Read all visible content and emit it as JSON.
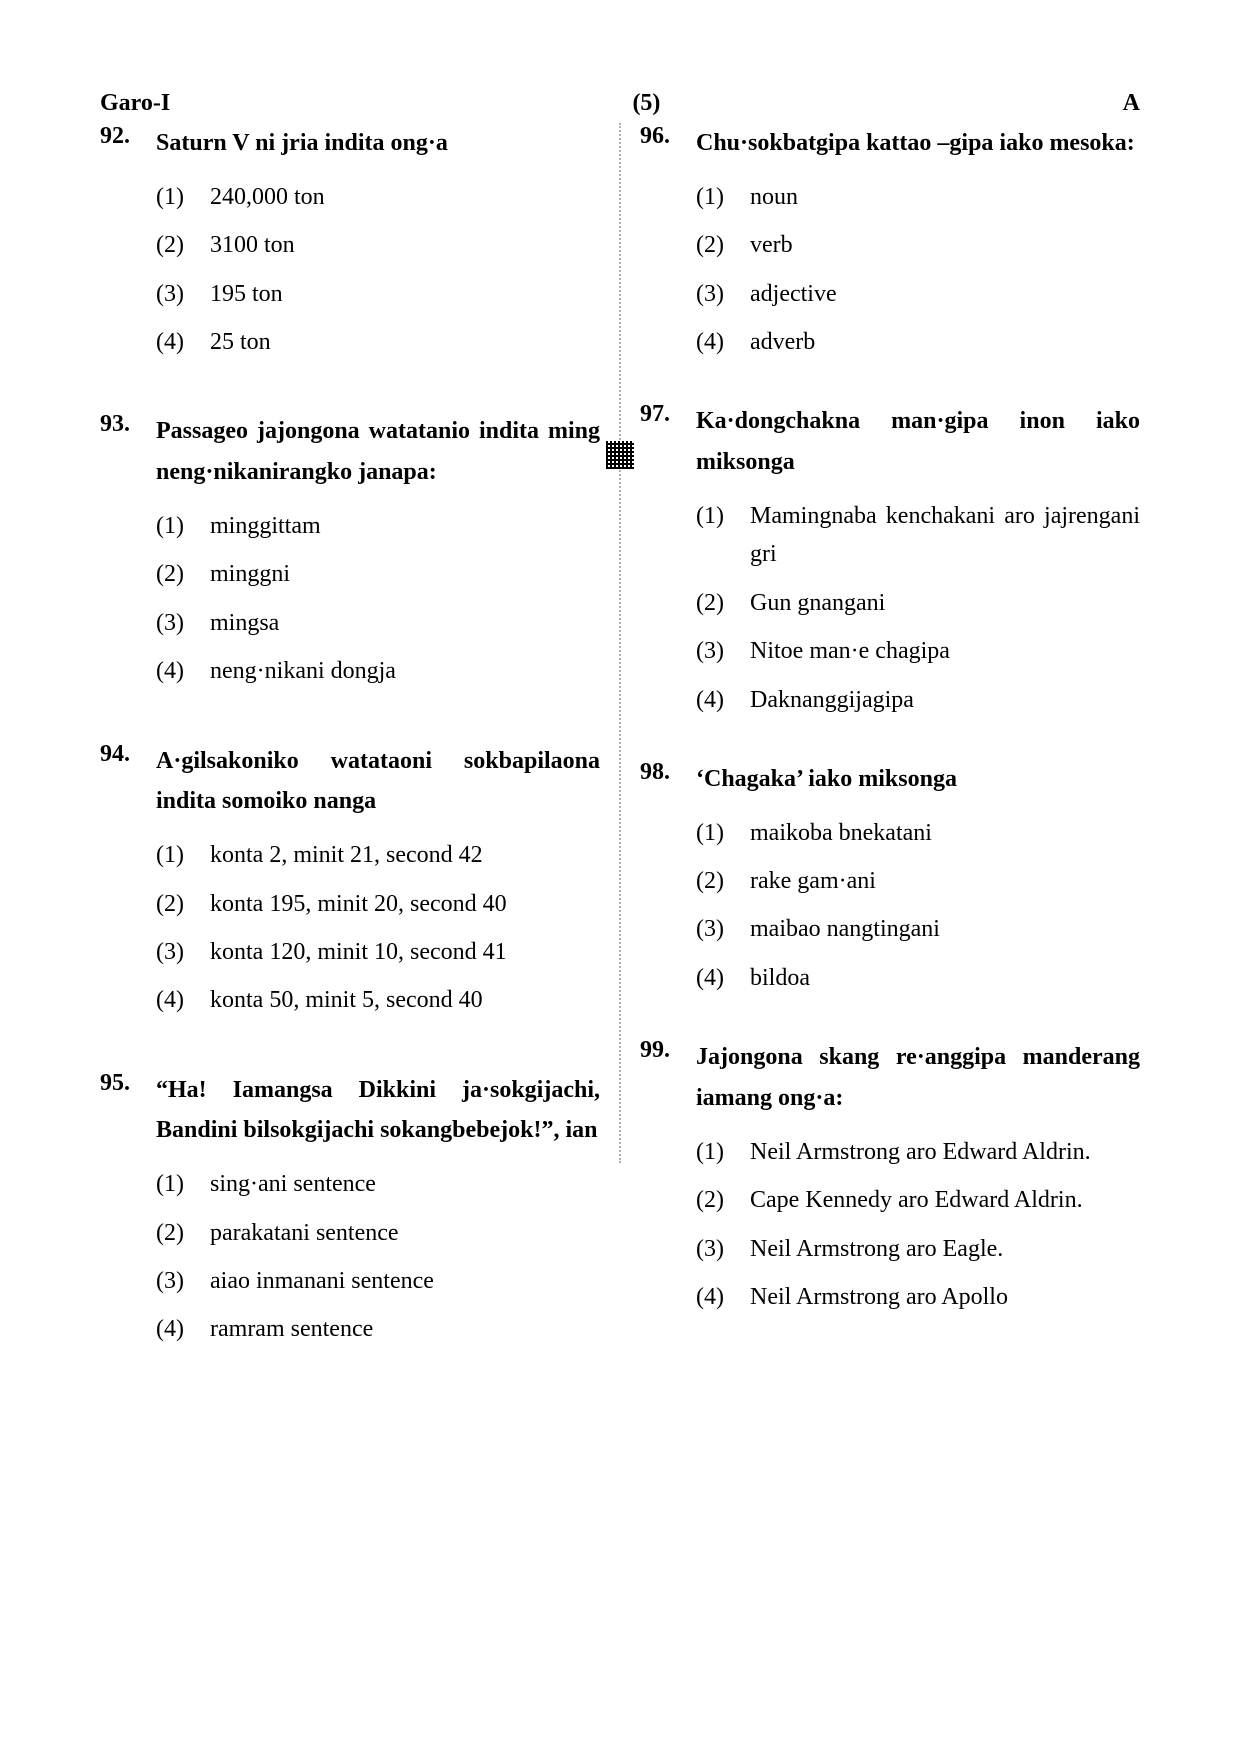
{
  "header": {
    "left": "Garo-I",
    "center": "(5)",
    "right": "A"
  },
  "leftColumn": [
    {
      "num": "92.",
      "stem": "Saturn V ni jria indita ong·a",
      "opts": [
        "240,000 ton",
        "3100 ton",
        "195 ton",
        "25 ton"
      ]
    },
    {
      "num": "93.",
      "stem": "Passageo jajongona watatanio indita ming neng·nikanirangko janapa:",
      "opts": [
        "minggittam",
        "minggni",
        "mingsa",
        "neng·nikani dongja"
      ]
    },
    {
      "num": "94.",
      "stem": "A·gilsakoniko watataoni sokbapilaona indita somoiko nanga",
      "opts": [
        "konta 2, minit 21, second 42",
        "konta 195, minit 20, second 40",
        "konta 120, minit 10, second 41",
        "konta 50, minit 5, second 40"
      ]
    },
    {
      "num": "95.",
      "stem": "“Ha! Iamangsa Dikkini ja·sokgijachi, Bandini bilsokgijachi sokangbebejok!”, ian",
      "opts": [
        "sing·ani sentence",
        "parakatani sentence",
        "aiao inmanani sentence",
        "ramram sentence"
      ]
    }
  ],
  "rightColumn": [
    {
      "num": "96.",
      "stem": "Chu·sokbatgipa kattao –gipa iako mesoka:",
      "opts": [
        "noun",
        "verb",
        "adjective",
        "adverb"
      ]
    },
    {
      "num": "97.",
      "stem": "Ka·dongchakna man·gipa inon iako miksonga",
      "opts": [
        "Mamingnaba kenchakani aro jajrengani gri",
        "Gun gnangani",
        "Nitoe man·e chagipa",
        "Daknanggijagipa"
      ]
    },
    {
      "num": "98.",
      "stem": "‘Chagaka’ iako miksonga",
      "opts": [
        "maikoba bnekatani",
        "rake gam·ani",
        "maibao nangtingani",
        "bildoa"
      ]
    },
    {
      "num": "99.",
      "stem": "Jajongona skang re·anggipa manderang iamang ong·a:",
      "opts": [
        "Neil Armstrong aro Edward Aldrin.",
        "Cape Kennedy aro Edward Aldrin.",
        "Neil Armstrong aro Eagle.",
        "Neil Armstrong aro Apollo"
      ]
    }
  ],
  "optionLabels": [
    "(1)",
    "(2)",
    "(3)",
    "(4)"
  ]
}
